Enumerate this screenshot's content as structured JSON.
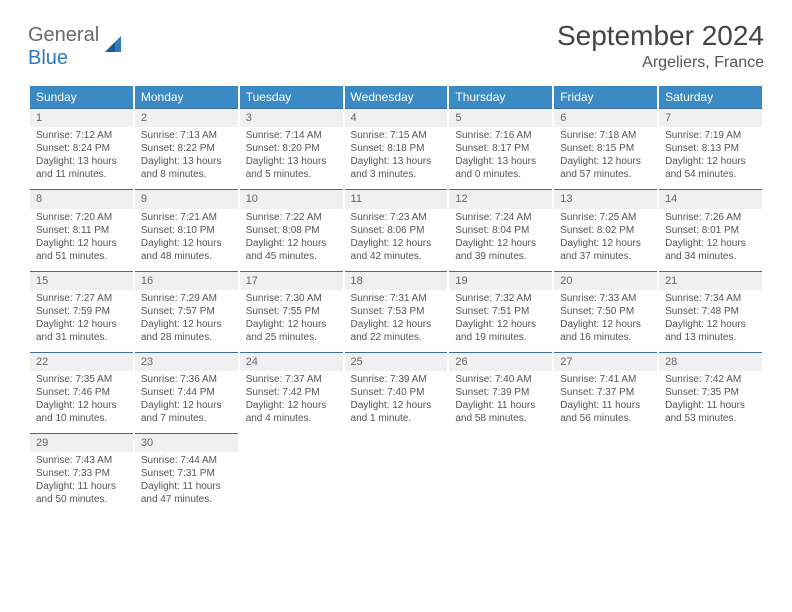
{
  "logo": {
    "text1": "General",
    "text2": "Blue"
  },
  "title": "September 2024",
  "location": "Argeliers, France",
  "colors": {
    "header_bg": "#3b8ac4",
    "header_text": "#ffffff",
    "day_head_bg": "#f0f0f0",
    "day_head_border": "#3b6e9a",
    "body_text": "#555555",
    "logo_gray": "#6a6a6a",
    "logo_blue": "#2f7bbf"
  },
  "weekdays": [
    "Sunday",
    "Monday",
    "Tuesday",
    "Wednesday",
    "Thursday",
    "Friday",
    "Saturday"
  ],
  "weeks": [
    [
      {
        "n": "1",
        "sunrise": "7:12 AM",
        "sunset": "8:24 PM",
        "daylight": "13 hours and 11 minutes."
      },
      {
        "n": "2",
        "sunrise": "7:13 AM",
        "sunset": "8:22 PM",
        "daylight": "13 hours and 8 minutes."
      },
      {
        "n": "3",
        "sunrise": "7:14 AM",
        "sunset": "8:20 PM",
        "daylight": "13 hours and 5 minutes."
      },
      {
        "n": "4",
        "sunrise": "7:15 AM",
        "sunset": "8:18 PM",
        "daylight": "13 hours and 3 minutes."
      },
      {
        "n": "5",
        "sunrise": "7:16 AM",
        "sunset": "8:17 PM",
        "daylight": "13 hours and 0 minutes."
      },
      {
        "n": "6",
        "sunrise": "7:18 AM",
        "sunset": "8:15 PM",
        "daylight": "12 hours and 57 minutes."
      },
      {
        "n": "7",
        "sunrise": "7:19 AM",
        "sunset": "8:13 PM",
        "daylight": "12 hours and 54 minutes."
      }
    ],
    [
      {
        "n": "8",
        "sunrise": "7:20 AM",
        "sunset": "8:11 PM",
        "daylight": "12 hours and 51 minutes."
      },
      {
        "n": "9",
        "sunrise": "7:21 AM",
        "sunset": "8:10 PM",
        "daylight": "12 hours and 48 minutes."
      },
      {
        "n": "10",
        "sunrise": "7:22 AM",
        "sunset": "8:08 PM",
        "daylight": "12 hours and 45 minutes."
      },
      {
        "n": "11",
        "sunrise": "7:23 AM",
        "sunset": "8:06 PM",
        "daylight": "12 hours and 42 minutes."
      },
      {
        "n": "12",
        "sunrise": "7:24 AM",
        "sunset": "8:04 PM",
        "daylight": "12 hours and 39 minutes."
      },
      {
        "n": "13",
        "sunrise": "7:25 AM",
        "sunset": "8:02 PM",
        "daylight": "12 hours and 37 minutes."
      },
      {
        "n": "14",
        "sunrise": "7:26 AM",
        "sunset": "8:01 PM",
        "daylight": "12 hours and 34 minutes."
      }
    ],
    [
      {
        "n": "15",
        "sunrise": "7:27 AM",
        "sunset": "7:59 PM",
        "daylight": "12 hours and 31 minutes."
      },
      {
        "n": "16",
        "sunrise": "7:29 AM",
        "sunset": "7:57 PM",
        "daylight": "12 hours and 28 minutes."
      },
      {
        "n": "17",
        "sunrise": "7:30 AM",
        "sunset": "7:55 PM",
        "daylight": "12 hours and 25 minutes."
      },
      {
        "n": "18",
        "sunrise": "7:31 AM",
        "sunset": "7:53 PM",
        "daylight": "12 hours and 22 minutes."
      },
      {
        "n": "19",
        "sunrise": "7:32 AM",
        "sunset": "7:51 PM",
        "daylight": "12 hours and 19 minutes."
      },
      {
        "n": "20",
        "sunrise": "7:33 AM",
        "sunset": "7:50 PM",
        "daylight": "12 hours and 16 minutes."
      },
      {
        "n": "21",
        "sunrise": "7:34 AM",
        "sunset": "7:48 PM",
        "daylight": "12 hours and 13 minutes."
      }
    ],
    [
      {
        "n": "22",
        "sunrise": "7:35 AM",
        "sunset": "7:46 PM",
        "daylight": "12 hours and 10 minutes."
      },
      {
        "n": "23",
        "sunrise": "7:36 AM",
        "sunset": "7:44 PM",
        "daylight": "12 hours and 7 minutes."
      },
      {
        "n": "24",
        "sunrise": "7:37 AM",
        "sunset": "7:42 PM",
        "daylight": "12 hours and 4 minutes."
      },
      {
        "n": "25",
        "sunrise": "7:39 AM",
        "sunset": "7:40 PM",
        "daylight": "12 hours and 1 minute."
      },
      {
        "n": "26",
        "sunrise": "7:40 AM",
        "sunset": "7:39 PM",
        "daylight": "11 hours and 58 minutes."
      },
      {
        "n": "27",
        "sunrise": "7:41 AM",
        "sunset": "7:37 PM",
        "daylight": "11 hours and 56 minutes."
      },
      {
        "n": "28",
        "sunrise": "7:42 AM",
        "sunset": "7:35 PM",
        "daylight": "11 hours and 53 minutes."
      }
    ],
    [
      {
        "n": "29",
        "sunrise": "7:43 AM",
        "sunset": "7:33 PM",
        "daylight": "11 hours and 50 minutes."
      },
      {
        "n": "30",
        "sunrise": "7:44 AM",
        "sunset": "7:31 PM",
        "daylight": "11 hours and 47 minutes."
      },
      null,
      null,
      null,
      null,
      null
    ]
  ],
  "labels": {
    "sunrise": "Sunrise:",
    "sunset": "Sunset:",
    "daylight": "Daylight:"
  }
}
